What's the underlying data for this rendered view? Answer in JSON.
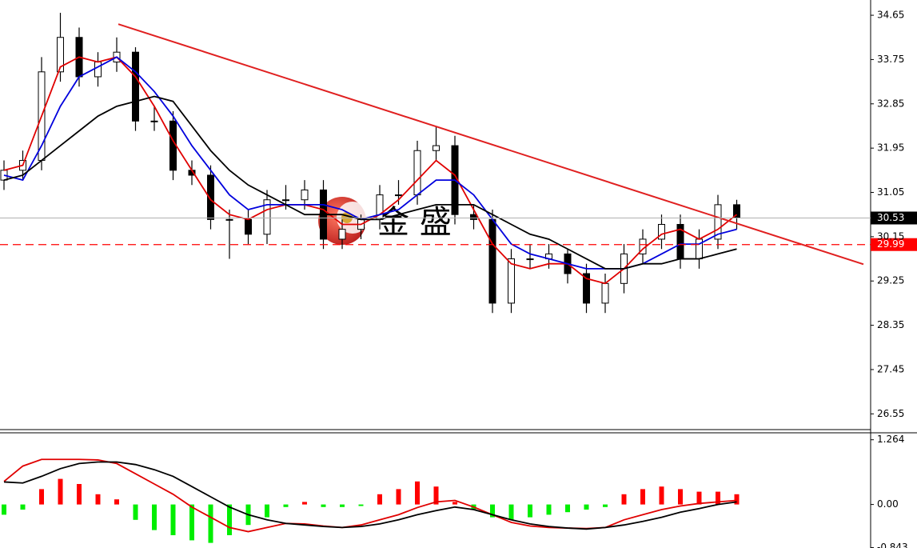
{
  "chart_data": [
    {
      "type": "candlestick",
      "watermark": "金 盛",
      "categories": [
        null,
        null,
        null,
        null,
        null,
        null,
        null,
        null,
        null,
        null,
        null,
        null,
        null,
        null,
        null,
        null,
        null,
        null,
        null,
        null,
        null,
        null,
        null,
        null,
        null,
        null,
        null,
        null,
        null,
        null,
        null,
        null,
        null,
        null,
        null,
        null,
        null,
        null,
        null,
        null
      ],
      "open": [
        31.3,
        31.5,
        31.7,
        33.5,
        34.2,
        33.4,
        33.7,
        33.9,
        32.5,
        32.5,
        31.5,
        31.4,
        30.5,
        30.5,
        30.2,
        30.9,
        30.9,
        31.1,
        30.1,
        30.3,
        30.5,
        31.0,
        31.0,
        31.9,
        32.0,
        30.6,
        30.5,
        28.8,
        29.7,
        29.7,
        29.8,
        29.4,
        28.8,
        29.2,
        29.8,
        30.1,
        30.4,
        29.7,
        30.1,
        30.8
      ],
      "high": [
        31.7,
        31.9,
        33.8,
        34.7,
        34.4,
        33.9,
        34.2,
        34.0,
        32.8,
        32.7,
        31.7,
        31.6,
        30.7,
        30.7,
        31.1,
        31.2,
        31.3,
        31.3,
        30.5,
        30.6,
        31.2,
        31.3,
        32.1,
        32.4,
        32.2,
        30.8,
        30.7,
        29.9,
        30.0,
        30.0,
        29.9,
        29.6,
        29.4,
        30.0,
        30.3,
        30.6,
        30.6,
        30.3,
        31.0,
        30.9
      ],
      "low": [
        31.1,
        31.3,
        31.5,
        33.3,
        33.2,
        33.2,
        33.5,
        32.3,
        32.3,
        31.3,
        31.2,
        30.3,
        29.7,
        30.0,
        30.0,
        30.7,
        30.7,
        29.9,
        29.9,
        30.1,
        30.3,
        30.8,
        30.8,
        31.7,
        30.4,
        30.3,
        28.6,
        28.6,
        29.5,
        29.5,
        29.2,
        28.6,
        28.6,
        29.0,
        29.6,
        29.9,
        29.5,
        29.5,
        29.9,
        30.3
      ],
      "close": [
        31.5,
        31.7,
        33.5,
        34.2,
        33.4,
        33.7,
        33.9,
        32.5,
        32.5,
        31.5,
        31.4,
        30.5,
        30.5,
        30.2,
        30.9,
        30.9,
        31.1,
        30.1,
        30.3,
        30.5,
        31.0,
        31.0,
        31.9,
        32.0,
        30.6,
        30.5,
        28.8,
        29.7,
        29.7,
        29.8,
        29.4,
        28.8,
        29.2,
        29.8,
        30.1,
        30.4,
        29.7,
        30.1,
        30.8,
        30.53
      ],
      "up_color": "#ffffff",
      "down_color": "#000000",
      "series": [
        {
          "color": "#e00000",
          "values": [
            31.5,
            31.6,
            32.6,
            33.6,
            33.8,
            33.7,
            33.8,
            33.4,
            32.8,
            32.1,
            31.5,
            30.9,
            30.6,
            30.5,
            30.7,
            30.8,
            30.8,
            30.7,
            30.4,
            30.4,
            30.6,
            30.9,
            31.3,
            31.7,
            31.4,
            30.7,
            30.0,
            29.6,
            29.5,
            29.6,
            29.6,
            29.3,
            29.2,
            29.5,
            29.9,
            30.2,
            30.3,
            30.1,
            30.3,
            30.6
          ]
        },
        {
          "color": "#0000dd",
          "values": [
            31.4,
            31.3,
            32.0,
            32.8,
            33.4,
            33.6,
            33.8,
            33.5,
            33.1,
            32.6,
            32.0,
            31.5,
            31.0,
            30.7,
            30.8,
            30.8,
            30.8,
            30.8,
            30.7,
            30.5,
            30.6,
            30.7,
            31.0,
            31.3,
            31.3,
            31.0,
            30.5,
            30.0,
            29.8,
            29.7,
            29.6,
            29.5,
            29.5,
            29.5,
            29.6,
            29.8,
            30.0,
            30.0,
            30.2,
            30.3
          ]
        },
        {
          "color": "#000000",
          "values": [
            31.3,
            31.4,
            31.7,
            32.0,
            32.3,
            32.6,
            32.8,
            32.9,
            33.0,
            32.9,
            32.4,
            31.9,
            31.5,
            31.2,
            31.0,
            30.8,
            30.6,
            30.6,
            30.6,
            30.5,
            30.5,
            30.6,
            30.7,
            30.8,
            30.8,
            30.8,
            30.6,
            30.4,
            30.2,
            30.1,
            29.9,
            29.7,
            29.5,
            29.5,
            29.6,
            29.6,
            29.7,
            29.7,
            29.8,
            29.9
          ]
        }
      ],
      "trendline": {
        "color": "#e02020",
        "values": [
          34.47,
          29.59
        ]
      },
      "current_price": 30.53,
      "alert_price": 29.99,
      "alert_color": "#ff0000",
      "ylim": [
        26.23,
        34.96
      ],
      "yticks": [
        34.65,
        33.75,
        32.85,
        31.95,
        31.05,
        30.15,
        29.25,
        28.35,
        27.45,
        26.55
      ]
    },
    {
      "type": "macd",
      "histogram": [
        -0.2,
        -0.1,
        0.3,
        0.5,
        0.4,
        0.2,
        0.1,
        -0.3,
        -0.5,
        -0.6,
        -0.7,
        -0.75,
        -0.6,
        -0.4,
        -0.25,
        -0.05,
        0.05,
        -0.05,
        -0.05,
        -0.03,
        0.2,
        0.3,
        0.45,
        0.35,
        0.05,
        -0.1,
        -0.25,
        -0.3,
        -0.25,
        -0.2,
        -0.15,
        -0.1,
        -0.05,
        0.2,
        0.3,
        0.35,
        0.3,
        0.25,
        0.25,
        0.2
      ],
      "up_color": "#ff0000",
      "down_color": "#00ee00",
      "series": [
        {
          "color": "#e00000",
          "values": [
            0.45,
            0.75,
            0.88,
            0.88,
            0.88,
            0.87,
            0.8,
            0.6,
            0.4,
            0.2,
            -0.05,
            -0.25,
            -0.45,
            -0.53,
            -0.45,
            -0.37,
            -0.38,
            -0.42,
            -0.45,
            -0.4,
            -0.3,
            -0.2,
            -0.06,
            0.05,
            0.08,
            -0.05,
            -0.2,
            -0.35,
            -0.42,
            -0.45,
            -0.46,
            -0.47,
            -0.45,
            -0.3,
            -0.2,
            -0.1,
            -0.03,
            0.02,
            0.05,
            0.08
          ]
        },
        {
          "color": "#000000",
          "values": [
            0.44,
            0.42,
            0.55,
            0.7,
            0.8,
            0.83,
            0.83,
            0.78,
            0.68,
            0.55,
            0.35,
            0.15,
            -0.05,
            -0.2,
            -0.3,
            -0.37,
            -0.4,
            -0.43,
            -0.45,
            -0.43,
            -0.38,
            -0.3,
            -0.2,
            -0.12,
            -0.05,
            -0.1,
            -0.2,
            -0.3,
            -0.38,
            -0.43,
            -0.46,
            -0.48,
            -0.45,
            -0.4,
            -0.33,
            -0.25,
            -0.15,
            -0.08,
            0.0,
            0.05
          ]
        }
      ],
      "ylim": [
        -0.85,
        1.4
      ],
      "yticks": [
        1.264,
        {
          "value": 0,
          "label": "0.00"
        },
        -0.843
      ]
    }
  ]
}
